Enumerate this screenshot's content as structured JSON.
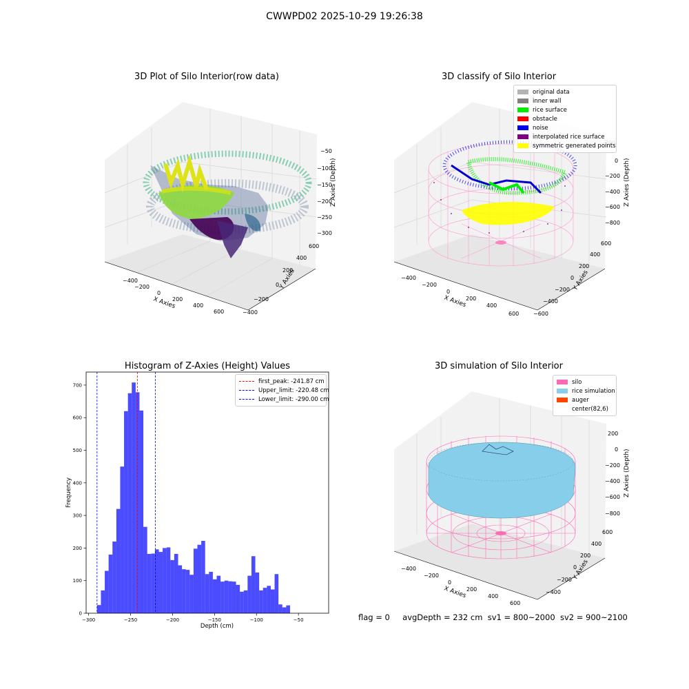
{
  "figure": {
    "suptitle": "CWWPD02 2025-10-29 19:26:38"
  },
  "panels": {
    "raw": {
      "title": "3D Plot of Silo Interior(row data)",
      "xlabel": "X Axies",
      "ylabel": "Y Axies",
      "zlabel": "Z Axies (Depth)",
      "xticks": [
        "−400",
        "−200",
        "0",
        "200",
        "400",
        "600"
      ],
      "yticks": [
        "−400",
        "−200",
        "0",
        "200",
        "400",
        "600"
      ],
      "zticks": [
        "−50",
        "−100",
        "−150",
        "−200",
        "−250",
        "−300"
      ],
      "colormap": "viridis"
    },
    "classify": {
      "title": "3D classify of Silo Interior",
      "xlabel": "X Axies",
      "ylabel": "Y Axies",
      "zlabel": "Z Axies (Depth)",
      "xticks": [
        "−400",
        "−200",
        "0",
        "200",
        "400",
        "600"
      ],
      "yticks": [
        "−600",
        "−400",
        "−200",
        "0",
        "200",
        "400",
        "600"
      ],
      "zticks": [
        "200",
        "0",
        "−200",
        "−400",
        "−600",
        "−800"
      ],
      "legend": [
        {
          "label": "original data",
          "color": "#b3b3b3"
        },
        {
          "label": "inner wall",
          "color": "#808080"
        },
        {
          "label": "rice surface",
          "color": "#00ee00"
        },
        {
          "label": "obstacle",
          "color": "#ff0000"
        },
        {
          "label": "noise",
          "color": "#0000ee"
        },
        {
          "label": "interpolated rice surface",
          "color": "#800080"
        },
        {
          "label": "symmetric generated points",
          "color": "#ffff00"
        }
      ]
    },
    "simulation": {
      "title": "3D simulation of Silo Interior",
      "xlabel": "X Axies",
      "ylabel": "Y Axies",
      "zlabel": "Z Axies (Depth)",
      "xticks": [
        "−400",
        "−200",
        "0",
        "200",
        "400",
        "600"
      ],
      "yticks": [
        "−400",
        "−200",
        "0",
        "200",
        "400",
        "600"
      ],
      "zticks": [
        "200",
        "0",
        "−200",
        "−400",
        "−600",
        "−800"
      ],
      "legend": [
        {
          "label": "silo",
          "color": "#ff69b4"
        },
        {
          "label": "rice simulation",
          "color": "#87ceeb"
        },
        {
          "label": "auger",
          "color": "#ff4500"
        },
        {
          "label": "center(82,6)",
          "color": ""
        }
      ]
    }
  },
  "chart_data": {
    "type": "bar",
    "title": "Histogram of Z-Axies (Height) Values",
    "xlabel": "Depth (cm)",
    "ylabel": "Frequency",
    "xlim": [
      -303,
      -14
    ],
    "ylim": [
      0,
      740
    ],
    "xticks": [
      -300,
      -250,
      -200,
      -150,
      -100,
      -50
    ],
    "yticks": [
      0,
      100,
      200,
      300,
      400,
      500,
      600,
      700
    ],
    "bar_color": "#0000ff",
    "bar_start": -290,
    "bin_width": 4.6,
    "values": [
      25,
      70,
      130,
      180,
      220,
      320,
      450,
      620,
      675,
      708,
      678,
      622,
      265,
      182,
      183,
      196,
      188,
      200,
      202,
      163,
      182,
      147,
      135,
      133,
      118,
      198,
      210,
      222,
      120,
      127,
      104,
      115,
      97,
      100,
      98,
      97,
      87,
      66,
      70,
      115,
      175,
      125,
      70,
      78,
      84,
      73,
      120,
      27,
      18,
      24
    ],
    "vlines": [
      {
        "label": "first_peak: -241.87 cm",
        "x": -241.87,
        "color": "#ff0000"
      },
      {
        "label": "Upper_limit: -220.48 cm",
        "x": -220.48,
        "color": "#0000ff"
      },
      {
        "label": "Lower_limit: -290.00 cm",
        "x": -290.0,
        "color": "#0000ff"
      }
    ],
    "legend_position": "top-right"
  },
  "status": {
    "flag": "flag = 0",
    "avg_depth": "avgDepth = 232 cm",
    "sv1": "sv1 = 800~2000",
    "sv2": "sv2 = 900~2100"
  }
}
